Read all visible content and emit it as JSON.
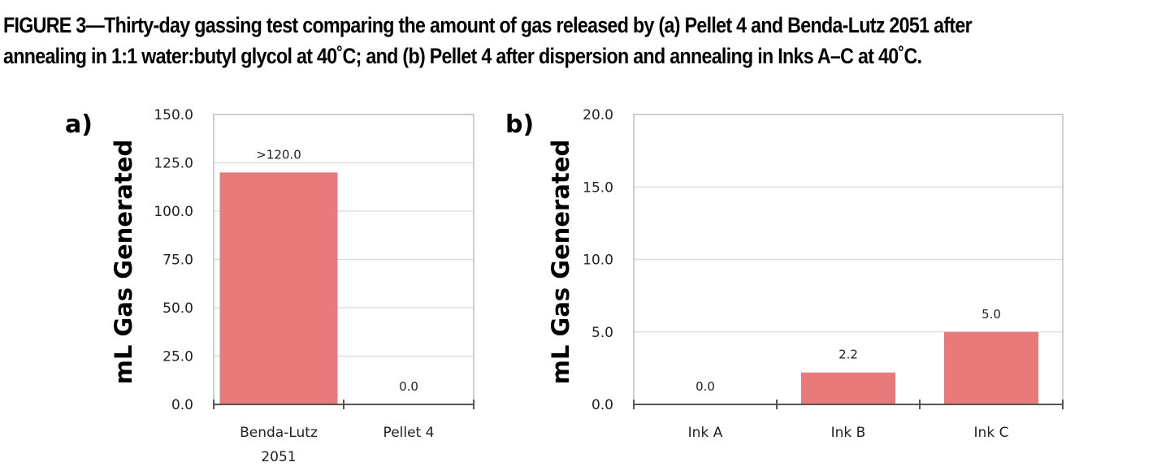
{
  "figure": {
    "caption_line1": "FIGURE 3—Thirty-day gassing test comparing the amount of gas released by (a) Pellet 4 and Benda-Lutz 2051 after",
    "caption_line2": "annealing in 1:1 water:butyl glycol at 40˚C; and (b) Pellet 4 after dispersion and annealing in Inks A–C at 40˚C."
  },
  "chart_data": [
    {
      "panel_label": "a)",
      "type": "bar",
      "categories": [
        [
          "Benda-Lutz",
          "2051"
        ],
        [
          "Pellet 4"
        ]
      ],
      "values": [
        120.0,
        0.0
      ],
      "data_labels": [
        ">120.0",
        "0.0"
      ],
      "ylabel": "mL Gas Generated",
      "ylim": [
        0,
        150
      ],
      "yticks": [
        "0.0",
        "25.0",
        "50.0",
        "75.0",
        "100.0",
        "125.0",
        "150.0"
      ],
      "grid": true,
      "bar_color": "#e97a7a"
    },
    {
      "panel_label": "b)",
      "type": "bar",
      "categories": [
        [
          "Ink A"
        ],
        [
          "Ink B"
        ],
        [
          "Ink C"
        ]
      ],
      "values": [
        0.0,
        2.2,
        5.0
      ],
      "data_labels": [
        "0.0",
        "2.2",
        "5.0"
      ],
      "ylabel": "mL Gas Generated",
      "ylim": [
        0,
        20
      ],
      "yticks": [
        "0.0",
        "5.0",
        "10.0",
        "15.0",
        "20.0"
      ],
      "grid": true,
      "bar_color": "#e97a7a"
    }
  ]
}
